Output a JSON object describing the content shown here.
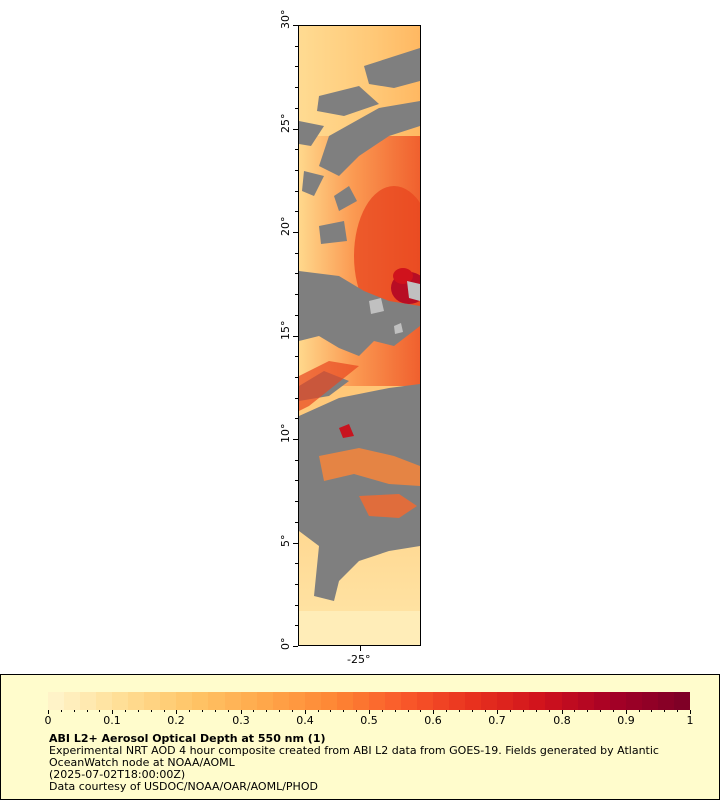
{
  "map": {
    "lat_labels": [
      "0°",
      "5°",
      "10°",
      "15°",
      "20°",
      "25°",
      "30°"
    ],
    "lat_values": [
      0,
      5,
      10,
      15,
      20,
      25,
      30
    ],
    "lon_label": "-25°",
    "lon_value": -25,
    "missing_color": "#7f7f7f",
    "land_color": "#c0c0c0"
  },
  "legend": {
    "colorbar_ticks": [
      "0",
      "0.1",
      "0.2",
      "0.3",
      "0.4",
      "0.5",
      "0.6",
      "0.7",
      "0.8",
      "0.9",
      "1"
    ],
    "colorbar_range": [
      0,
      1
    ],
    "colors": [
      "#fff3c8",
      "#ffdd93",
      "#ffc466",
      "#ffa74a",
      "#fe8634",
      "#f9592a",
      "#e8311e",
      "#d0121c",
      "#a50026",
      "#7f0026"
    ],
    "title": "ABI L2+ Aerosol Optical Depth at 550 nm (1)",
    "line1": "Experimental NRT AOD 4 hour composite created from ABI L2 data from GOES-19. Fields generated by Atlantic",
    "line2": "OceanWatch node at NOAA/AOML",
    "line3": "(2025-07-02T18:00:00Z)",
    "line4": "Data courtesy of USDOC/NOAA/OAR/AOML/PHOD"
  }
}
